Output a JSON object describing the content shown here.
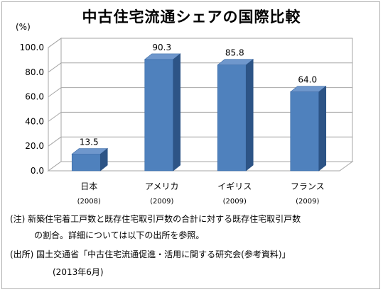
{
  "chart_data": {
    "type": "bar",
    "title": "中古住宅流通シェアの国際比較",
    "ylabel": "(%)",
    "categories": [
      "日本",
      "アメリカ",
      "イギリス",
      "フランス"
    ],
    "category_years": [
      "(2008)",
      "(2009)",
      "(2009)",
      "(2009)"
    ],
    "values": [
      13.5,
      90.3,
      85.8,
      64.0
    ],
    "data_labels": [
      "13.5",
      "90.3",
      "85.8",
      "64.0"
    ],
    "ylim": [
      0,
      100
    ],
    "yticks": [
      "0.0",
      "20.0",
      "40.0",
      "60.0",
      "80.0",
      "100.0"
    ],
    "grid": true,
    "legend": "none",
    "bar_color": "#4f81bd",
    "bar_top_color": "#6f97cc",
    "bar_side_color": "#2d5486"
  },
  "notes": {
    "line1": "(注) 新築住宅着工戸数と既存住宅取引戸数の合計に対する既存住宅取引戸数",
    "line2": "の割合。詳細については以下の出所を参照。",
    "line3": "(出所) 国土交通省「中古住宅流通促進・活用に関する研究会(参考資料)」",
    "line4": "(2013年6月)"
  }
}
